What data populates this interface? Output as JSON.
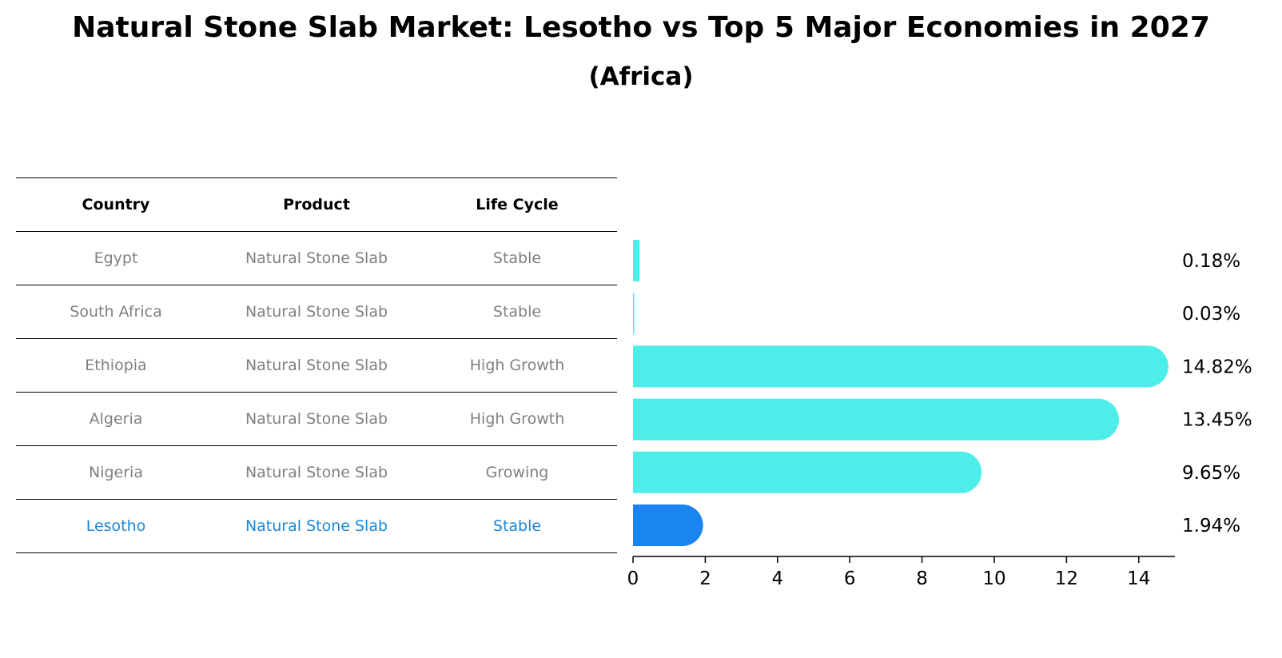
{
  "chart_data": {
    "type": "bar",
    "orientation": "horizontal",
    "title": "Natural Stone Slab Market: Lesotho vs Top 5 Major Economies in 2027",
    "subtitle": "(Africa)",
    "categories": [
      "Egypt",
      "South Africa",
      "Ethiopia",
      "Algeria",
      "Nigeria",
      "Lesotho"
    ],
    "values": [
      0.18,
      0.03,
      14.82,
      13.45,
      9.65,
      1.94
    ],
    "value_labels": [
      "0.18%",
      "0.03%",
      "14.82%",
      "13.45%",
      "9.65%",
      "1.94%"
    ],
    "highlight": "Lesotho",
    "xlim": [
      0,
      15.6
    ],
    "xticks": [
      0,
      2,
      4,
      6,
      8,
      10,
      12,
      14
    ],
    "xlabel": "",
    "ylabel": "",
    "grid": false,
    "colors": {
      "bar": "#4deeea",
      "highlight_bar": "#1a85f0",
      "highlight_text": "#1d87d6",
      "text_muted": "#808080"
    }
  },
  "table": {
    "headers": [
      "Country",
      "Product",
      "Life Cycle"
    ],
    "rows": [
      [
        "Egypt",
        "Natural Stone Slab",
        "Stable"
      ],
      [
        "South Africa",
        "Natural Stone Slab",
        "Stable"
      ],
      [
        "Ethiopia",
        "Natural Stone Slab",
        "High Growth"
      ],
      [
        "Algeria",
        "Natural Stone Slab",
        "High Growth"
      ],
      [
        "Nigeria",
        "Natural Stone Slab",
        "Growing"
      ],
      [
        "Lesotho",
        "Natural Stone Slab",
        "Stable"
      ]
    ]
  }
}
